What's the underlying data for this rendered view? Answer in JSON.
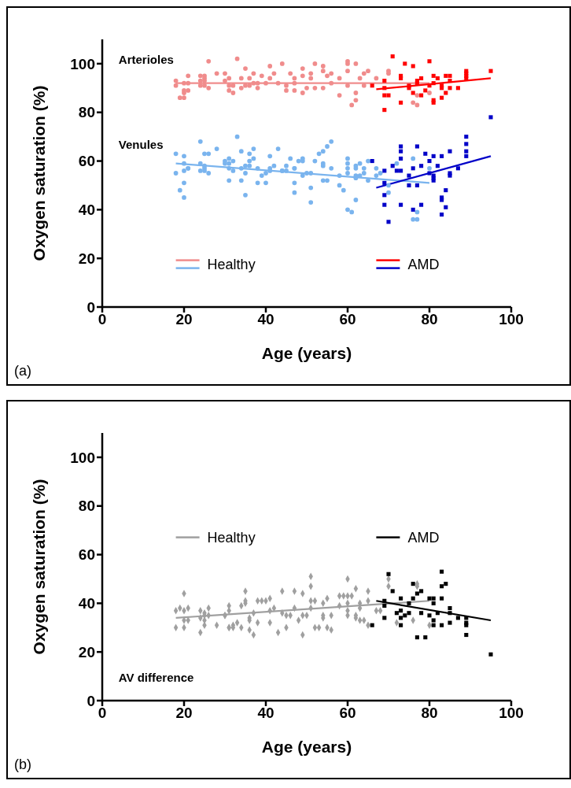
{
  "chart_data": [
    {
      "type": "scatter",
      "xlabel": "Age (years)",
      "ylabel": "Oxygen saturation (%)",
      "xlim": [
        0,
        100
      ],
      "xticks": [
        0,
        20,
        40,
        60,
        80,
        100
      ],
      "ylim": [
        0,
        110
      ],
      "yticks": [
        0,
        20,
        40,
        60,
        80,
        100
      ],
      "legend": "bottom",
      "annotations": [
        "Arterioles",
        "Venules",
        "(a)"
      ],
      "series": [
        {
          "name": "Healthy",
          "color": "#f08c8c",
          "marker": "circle",
          "x": [
            18,
            18,
            19,
            20,
            20,
            20,
            20,
            21,
            21,
            21,
            24,
            24,
            24,
            25,
            25,
            25,
            25,
            26,
            26,
            28,
            30,
            30,
            31,
            31,
            31,
            32,
            32,
            33,
            34,
            34,
            35,
            35,
            36,
            36,
            37,
            37,
            38,
            38,
            39,
            40,
            41,
            41,
            42,
            43,
            44,
            45,
            45,
            46,
            47,
            47,
            47,
            49,
            49,
            49,
            50,
            51,
            51,
            52,
            52,
            54,
            54,
            54,
            55,
            56,
            56,
            58,
            58,
            60,
            60,
            60,
            60,
            61,
            62,
            62,
            62,
            63,
            64,
            64,
            65,
            67,
            70,
            70,
            76,
            77,
            77,
            80
          ],
          "values": [
            93,
            91,
            86,
            86,
            88,
            89,
            92,
            92,
            95,
            89,
            95,
            93,
            91,
            95,
            94,
            93,
            91,
            90,
            101,
            96,
            96,
            93,
            94,
            91,
            89,
            91,
            88,
            102,
            94,
            90,
            98,
            91,
            94,
            91,
            96,
            92,
            92,
            90,
            95,
            92,
            99,
            94,
            96,
            92,
            100,
            91,
            89,
            96,
            94,
            92,
            89,
            98,
            95,
            88,
            90,
            96,
            94,
            100,
            90,
            99,
            97,
            90,
            95,
            96,
            92,
            94,
            87,
            101,
            100,
            97,
            91,
            83,
            100,
            88,
            85,
            94,
            96,
            91,
            97,
            94,
            97,
            96,
            84,
            87,
            83,
            88
          ]
        },
        {
          "color": "#7ab4ee",
          "marker": "circle",
          "x": [
            18,
            18,
            19,
            20,
            20,
            20,
            20,
            20,
            21,
            21,
            24,
            24,
            24,
            25,
            25,
            25,
            25,
            26,
            26,
            28,
            30,
            30,
            31,
            31,
            31,
            31,
            32,
            32,
            33,
            34,
            34,
            34,
            35,
            35,
            35,
            36,
            36,
            36,
            37,
            37,
            38,
            38,
            39,
            40,
            40,
            41,
            41,
            41,
            42,
            43,
            44,
            44,
            45,
            45,
            46,
            47,
            47,
            47,
            47,
            48,
            49,
            49,
            49,
            50,
            51,
            51,
            51,
            52,
            53,
            54,
            54,
            54,
            54,
            55,
            55,
            56,
            56,
            58,
            58,
            59,
            60,
            60,
            60,
            60,
            60,
            61,
            62,
            62,
            62,
            62,
            62,
            63,
            63,
            64,
            64,
            65,
            65,
            67,
            67,
            68,
            70,
            70,
            72,
            76,
            76,
            77,
            77,
            80
          ],
          "values": [
            63,
            55,
            48,
            62,
            59,
            56,
            51,
            45,
            57,
            57,
            68,
            59,
            56,
            63,
            58,
            57,
            56,
            63,
            55,
            65,
            60,
            59,
            61,
            59,
            57,
            52,
            60,
            56,
            70,
            64,
            57,
            52,
            58,
            55,
            46,
            63,
            60,
            58,
            65,
            61,
            57,
            51,
            54,
            55,
            51,
            62,
            57,
            56,
            58,
            65,
            56,
            56,
            58,
            56,
            61,
            57,
            57,
            51,
            47,
            60,
            61,
            60,
            54,
            55,
            55,
            49,
            43,
            60,
            63,
            64,
            59,
            58,
            52,
            66,
            52,
            68,
            57,
            54,
            50,
            48,
            61,
            59,
            57,
            55,
            40,
            39,
            58,
            57,
            54,
            53,
            44,
            59,
            54,
            57,
            55,
            60,
            52,
            57,
            54,
            55,
            50,
            47,
            59,
            61,
            36,
            39,
            36,
            57
          ]
        },
        {
          "name": "AMD",
          "color": "#ff0000",
          "marker": "square",
          "x": [
            66,
            69,
            69,
            69,
            69,
            70,
            71,
            73,
            73,
            73,
            74,
            75,
            75,
            76,
            76,
            77,
            77,
            78,
            78,
            79,
            80,
            80,
            81,
            81,
            81,
            81,
            82,
            83,
            83,
            83,
            84,
            84,
            85,
            85,
            85,
            87,
            89,
            89,
            89,
            89,
            95
          ],
          "values": [
            91,
            93,
            90,
            87,
            81,
            87,
            103,
            95,
            94,
            84,
            100,
            91,
            90,
            99,
            88,
            93,
            92,
            94,
            87,
            89,
            101,
            91,
            95,
            92,
            85,
            84,
            94,
            91,
            90,
            86,
            95,
            88,
            95,
            93,
            90,
            90,
            97,
            96,
            95,
            94,
            97
          ]
        },
        {
          "color": "#0000c8",
          "marker": "square",
          "x": [
            66,
            69,
            69,
            69,
            69,
            70,
            71,
            72,
            73,
            73,
            73,
            73,
            73,
            75,
            75,
            76,
            76,
            77,
            77,
            78,
            78,
            79,
            80,
            80,
            81,
            81,
            81,
            81,
            82,
            83,
            83,
            83,
            83,
            84,
            84,
            85,
            85,
            85,
            87,
            89,
            89,
            89,
            89,
            95
          ],
          "values": [
            60,
            56,
            51,
            46,
            42,
            35,
            58,
            56,
            66,
            64,
            61,
            56,
            42,
            54,
            50,
            57,
            40,
            66,
            50,
            58,
            42,
            63,
            60,
            55,
            62,
            54,
            53,
            52,
            58,
            62,
            45,
            44,
            38,
            48,
            41,
            64,
            55,
            54,
            57,
            70,
            67,
            64,
            62,
            78
          ]
        },
        {
          "type": "line",
          "color": "#f08c8c",
          "marker": "none",
          "x": [
            18,
            80
          ],
          "values": [
            92,
            92
          ]
        },
        {
          "type": "line",
          "color": "#7ab4ee",
          "marker": "none",
          "x": [
            18,
            80
          ],
          "values": [
            59,
            51
          ]
        },
        {
          "type": "line",
          "color": "#ff0000",
          "marker": "none",
          "x": [
            67,
            95
          ],
          "values": [
            89.5,
            94
          ]
        },
        {
          "type": "line",
          "color": "#0000c8",
          "marker": "none",
          "x": [
            67,
            95
          ],
          "values": [
            49,
            62
          ]
        }
      ]
    },
    {
      "type": "scatter",
      "xlabel": "Age (years)",
      "ylabel": "Oxygen saturation (%)",
      "xlim": [
        0,
        100
      ],
      "xticks": [
        0,
        20,
        40,
        60,
        80,
        100
      ],
      "ylim": [
        0,
        110
      ],
      "yticks": [
        0,
        20,
        40,
        60,
        80,
        100
      ],
      "legend": "center",
      "annotations": [
        "AV difference",
        "(b)"
      ],
      "series": [
        {
          "name": "Healthy",
          "color": "#a0a0a0",
          "marker": "diamond",
          "x": [
            18,
            18,
            19,
            20,
            20,
            20,
            20,
            21,
            21,
            24,
            24,
            24,
            25,
            25,
            25,
            25,
            26,
            26,
            28,
            30,
            30,
            31,
            31,
            31,
            31,
            32,
            32,
            33,
            34,
            34,
            35,
            35,
            35,
            36,
            36,
            36,
            37,
            37,
            38,
            38,
            39,
            40,
            41,
            41,
            41,
            42,
            43,
            44,
            44,
            45,
            45,
            46,
            47,
            47,
            48,
            49,
            49,
            49,
            50,
            51,
            51,
            51,
            51,
            52,
            52,
            53,
            54,
            54,
            54,
            55,
            55,
            56,
            56,
            58,
            58,
            59,
            60,
            60,
            60,
            60,
            60,
            61,
            62,
            62,
            62,
            63,
            63,
            63,
            64,
            65,
            65,
            65,
            67,
            68,
            70,
            70,
            72,
            76,
            77,
            77,
            80
          ],
          "values": [
            37,
            30,
            38,
            44,
            37,
            33,
            30,
            38,
            33,
            37,
            34,
            28,
            36,
            35,
            33,
            31,
            38,
            35,
            31,
            35,
            35,
            39,
            37,
            30,
            30,
            31,
            30,
            32,
            39,
            30,
            45,
            41,
            40,
            34,
            33,
            29,
            36,
            27,
            41,
            32,
            41,
            41,
            42,
            37,
            32,
            38,
            28,
            45,
            36,
            35,
            30,
            35,
            45,
            38,
            33,
            44,
            35,
            27,
            35,
            51,
            47,
            41,
            38,
            41,
            30,
            30,
            40,
            35,
            34,
            42,
            30,
            29,
            35,
            43,
            39,
            43,
            50,
            43,
            40,
            37,
            35,
            43,
            46,
            35,
            34,
            40,
            38,
            33,
            33,
            45,
            41,
            31,
            37,
            37,
            50,
            47,
            32,
            33,
            48,
            47,
            31
          ]
        },
        {
          "name": "AMD",
          "color": "#000000",
          "marker": "square",
          "x": [
            66,
            69,
            69,
            69,
            70,
            71,
            72,
            73,
            73,
            73,
            73,
            74,
            75,
            75,
            76,
            76,
            77,
            77,
            78,
            78,
            79,
            80,
            80,
            81,
            81,
            81,
            81,
            82,
            83,
            83,
            83,
            83,
            84,
            85,
            85,
            85,
            87,
            89,
            89,
            89,
            89,
            95
          ],
          "values": [
            31,
            41,
            39,
            34,
            52,
            45,
            36,
            42,
            37,
            34,
            31,
            35,
            40,
            36,
            42,
            48,
            44,
            26,
            45,
            36,
            26,
            42,
            35,
            42,
            40,
            33,
            31,
            36,
            53,
            47,
            42,
            31,
            48,
            38,
            36,
            32,
            34,
            34,
            32,
            31,
            27,
            19
          ]
        },
        {
          "type": "line",
          "color": "#a0a0a0",
          "marker": "none",
          "x": [
            18,
            80
          ],
          "values": [
            34,
            41
          ]
        },
        {
          "type": "line",
          "color": "#000000",
          "marker": "none",
          "x": [
            67,
            95
          ],
          "values": [
            41,
            33
          ]
        }
      ]
    }
  ]
}
